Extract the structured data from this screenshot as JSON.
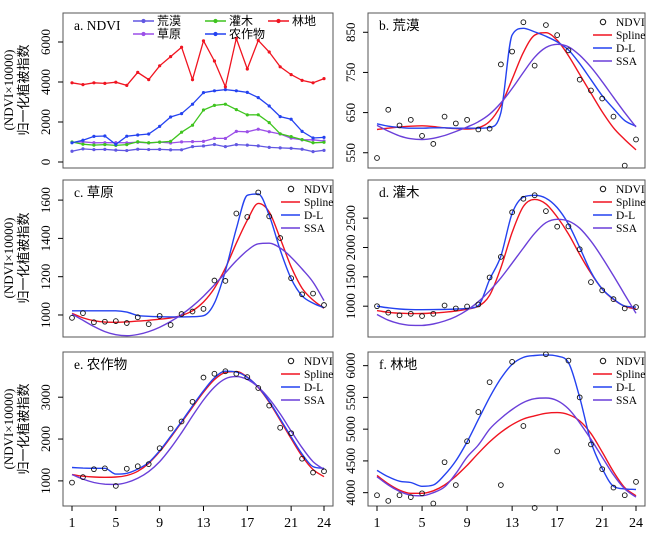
{
  "figure": {
    "y_axis_title_line1": "(NDVI×10000)",
    "y_axis_title_line2": "归一化植被指数",
    "x_ticks": [
      1,
      5,
      9,
      13,
      17,
      21,
      24
    ],
    "x_min": 1,
    "x_max": 24
  },
  "colors": {
    "desert": "#6157e2",
    "grassland": "#9b4fe8",
    "shrub": "#3ec41e",
    "cropland": "#2442f0",
    "forest": "#f01420",
    "points": "#000000",
    "spline": "#f01420",
    "dl": "#2442f0",
    "ssa": "#6a3fd9",
    "frame": "#555555"
  },
  "chart_data": [
    {
      "id": "a",
      "title": "a. NDVI",
      "type": "line",
      "ylim": [
        -300,
        7450
      ],
      "yticks": [
        0,
        2000,
        4000,
        6000
      ],
      "legend_rows": [
        [
          "荒漠",
          "灌木",
          "林地"
        ],
        [
          "草原",
          "农作物"
        ]
      ],
      "series": [
        {
          "name": "荒漠",
          "color_key": "desert",
          "values": [
            537,
            657,
            618,
            632,
            592,
            572,
            640,
            623,
            632,
            608,
            610,
            770,
            802,
            875,
            767,
            868,
            843,
            805,
            732,
            705,
            685,
            640,
            518,
            583
          ]
        },
        {
          "name": "草原",
          "color_key": "grassland",
          "values": [
            985,
            1010,
            962,
            965,
            968,
            958,
            988,
            952,
            995,
            948,
            1005,
            1018,
            1032,
            1180,
            1178,
            1530,
            1512,
            1640,
            1515,
            1402,
            1192,
            1108,
            1112,
            1052
          ]
        },
        {
          "name": "灌木",
          "color_key": "shrub",
          "values": [
            1000,
            890,
            845,
            870,
            832,
            870,
            1012,
            962,
            995,
            1030,
            1490,
            1840,
            2600,
            2830,
            2890,
            2620,
            2355,
            2360,
            1970,
            1410,
            1270,
            1120,
            962,
            985
          ]
        },
        {
          "name": "农作物",
          "color_key": "cropland",
          "values": [
            960,
            1090,
            1280,
            1300,
            880,
            1290,
            1350,
            1400,
            1780,
            2250,
            2420,
            2890,
            3470,
            3560,
            3620,
            3560,
            3480,
            3220,
            2800,
            2270,
            2140,
            1530,
            1200,
            1230
          ]
        },
        {
          "name": "林地",
          "color_key": "forest",
          "values": [
            3960,
            3870,
            3960,
            3930,
            3990,
            3830,
            4480,
            4120,
            4810,
            5270,
            5740,
            4120,
            6060,
            5050,
            3760,
            6180,
            4650,
            6080,
            5500,
            4760,
            4370,
            4080,
            3960,
            4170
          ]
        }
      ]
    },
    {
      "id": "b",
      "title": "b. 荒漠",
      "type": "scatter+fits",
      "ylim": [
        512,
        898
      ],
      "yticks": [
        550,
        650,
        750,
        850
      ],
      "points": [
        537,
        657,
        618,
        632,
        592,
        572,
        640,
        623,
        632,
        608,
        610,
        770,
        802,
        875,
        767,
        868,
        843,
        805,
        732,
        705,
        685,
        640,
        518,
        583
      ],
      "fits": [
        {
          "name": "Spline",
          "color_key": "spline",
          "values": [
            608,
            611,
            614,
            616,
            617,
            615,
            612,
            610,
            609,
            612,
            628,
            668,
            733,
            800,
            843,
            849,
            830,
            792,
            745,
            698,
            652,
            612,
            583,
            557
          ]
        },
        {
          "name": "D-L",
          "color_key": "dl",
          "values": [
            622,
            616,
            613,
            611,
            611,
            612,
            612,
            611,
            611,
            611,
            613,
            650,
            843,
            860,
            851,
            840,
            826,
            806,
            772,
            732,
            692,
            660,
            630,
            616
          ]
        },
        {
          "name": "SSA",
          "color_key": "ssa",
          "values": [
            618,
            604,
            592,
            585,
            583,
            586,
            593,
            603,
            614,
            627,
            646,
            674,
            710,
            750,
            788,
            812,
            820,
            814,
            793,
            763,
            727,
            688,
            650,
            614
          ]
        }
      ],
      "legend": [
        "NDVI",
        "Spline",
        "D-L",
        "SSA"
      ]
    },
    {
      "id": "c",
      "title": "c. 草原",
      "type": "scatter+fits",
      "ylim": [
        885,
        1705
      ],
      "yticks": [
        1000,
        1200,
        1400,
        1600
      ],
      "points": [
        985,
        1010,
        962,
        965,
        968,
        958,
        988,
        952,
        995,
        948,
        1005,
        1018,
        1032,
        1180,
        1178,
        1530,
        1512,
        1640,
        1515,
        1402,
        1192,
        1108,
        1112,
        1052
      ],
      "fits": [
        {
          "name": "Spline",
          "color_key": "spline",
          "values": [
            1008,
            985,
            970,
            963,
            962,
            964,
            968,
            972,
            978,
            985,
            998,
            1022,
            1068,
            1140,
            1245,
            1375,
            1495,
            1583,
            1538,
            1400,
            1252,
            1140,
            1078,
            1035
          ]
        },
        {
          "name": "D-L",
          "color_key": "dl",
          "values": [
            1022,
            1022,
            1022,
            1022,
            1022,
            1015,
            998,
            993,
            991,
            990,
            990,
            991,
            996,
            1062,
            1230,
            1450,
            1625,
            1632,
            1520,
            1340,
            1190,
            1100,
            1062,
            1038
          ]
        },
        {
          "name": "SSA",
          "color_key": "ssa",
          "values": [
            1005,
            972,
            940,
            913,
            897,
            892,
            898,
            913,
            936,
            966,
            1002,
            1046,
            1098,
            1157,
            1220,
            1283,
            1337,
            1372,
            1375,
            1350,
            1302,
            1240,
            1172,
            1075
          ]
        }
      ],
      "legend": [
        "NDVI",
        "Spline",
        "D-L",
        "SSA"
      ]
    },
    {
      "id": "d",
      "title": "d. 灌木",
      "type": "scatter+fits",
      "ylim": [
        475,
        3150
      ],
      "yticks": [
        1000,
        1500,
        2000,
        2500
      ],
      "points": [
        1000,
        890,
        845,
        870,
        832,
        870,
        1012,
        962,
        995,
        1030,
        1490,
        1840,
        2600,
        2830,
        2890,
        2620,
        2355,
        2360,
        1970,
        1410,
        1270,
        1120,
        962,
        985
      ],
      "fits": [
        {
          "name": "Spline",
          "color_key": "spline",
          "values": [
            925,
            895,
            880,
            874,
            876,
            884,
            898,
            918,
            948,
            1000,
            1185,
            1655,
            2255,
            2700,
            2820,
            2742,
            2520,
            2232,
            1882,
            1560,
            1292,
            1115,
            1000,
            950
          ]
        },
        {
          "name": "D-L",
          "color_key": "dl",
          "values": [
            1000,
            972,
            952,
            942,
            940,
            942,
            946,
            952,
            962,
            1012,
            1455,
            1855,
            2580,
            2858,
            2890,
            2840,
            2680,
            2400,
            2002,
            1582,
            1292,
            1122,
            1002,
            985
          ]
        },
        {
          "name": "SSA",
          "color_key": "ssa",
          "values": [
            858,
            762,
            702,
            674,
            672,
            697,
            748,
            822,
            932,
            1076,
            1262,
            1482,
            1732,
            1992,
            2242,
            2422,
            2480,
            2452,
            2328,
            2108,
            1828,
            1518,
            1198,
            878
          ]
        }
      ],
      "legend": [
        "NDVI",
        "Spline",
        "D-L",
        "SSA"
      ]
    },
    {
      "id": "e",
      "title": "e. 农作物",
      "type": "scatter+fits",
      "ylim": [
        400,
        4080
      ],
      "yticks": [
        1000,
        2000,
        3000
      ],
      "points": [
        960,
        1090,
        1280,
        1300,
        880,
        1290,
        1350,
        1400,
        1780,
        2250,
        2420,
        2890,
        3470,
        3560,
        3620,
        3560,
        3480,
        3220,
        2800,
        2270,
        2140,
        1530,
        1200,
        1230
      ],
      "fits": [
        {
          "name": "Spline",
          "color_key": "spline",
          "values": [
            1150,
            1112,
            1092,
            1086,
            1092,
            1130,
            1230,
            1420,
            1700,
            2040,
            2400,
            2760,
            3120,
            3420,
            3592,
            3612,
            3480,
            3232,
            2880,
            2450,
            2012,
            1592,
            1272,
            1100
          ]
        },
        {
          "name": "D-L",
          "color_key": "dl",
          "values": [
            1320,
            1306,
            1300,
            1300,
            1162,
            1182,
            1282,
            1440,
            1722,
            2062,
            2420,
            2792,
            3152,
            3462,
            3622,
            3602,
            3472,
            3242,
            2900,
            2482,
            2052,
            1642,
            1342,
            1300
          ]
        },
        {
          "name": "SSA",
          "color_key": "ssa",
          "values": [
            1150,
            1042,
            962,
            922,
            916,
            962,
            1062,
            1222,
            1462,
            1782,
            2152,
            2552,
            2932,
            3242,
            3442,
            3492,
            3422,
            3242,
            2962,
            2602,
            2192,
            1792,
            1462,
            1272
          ]
        }
      ],
      "legend": [
        "NDVI",
        "Spline",
        "D-L",
        "SSA"
      ]
    },
    {
      "id": "f",
      "title": "f. 林地",
      "type": "scatter+fits",
      "ylim": [
        3790,
        6215
      ],
      "yticks": [
        4000,
        4500,
        5000,
        5500,
        6000
      ],
      "points": [
        3960,
        3870,
        3960,
        3930,
        3990,
        3830,
        4480,
        4120,
        4810,
        5270,
        5740,
        4120,
        6060,
        5050,
        3760,
        6180,
        4650,
        6080,
        5500,
        4760,
        4370,
        4080,
        3960,
        4170
      ],
      "fits": [
        {
          "name": "Spline",
          "color_key": "spline",
          "values": [
            4270,
            4140,
            4040,
            3990,
            3990,
            4030,
            4120,
            4260,
            4430,
            4620,
            4800,
            4950,
            5070,
            5160,
            5210,
            5250,
            5260,
            5230,
            5130,
            4930,
            4640,
            4330,
            4080,
            3950
          ]
        },
        {
          "name": "D-L",
          "color_key": "dl",
          "values": [
            4350,
            4250,
            4180,
            4160,
            4100,
            4120,
            4280,
            4500,
            4800,
            5150,
            5500,
            5800,
            6020,
            6130,
            6160,
            6170,
            6150,
            6050,
            5500,
            4800,
            4380,
            4100,
            4060,
            4050
          ]
        },
        {
          "name": "SSA",
          "color_key": "ssa",
          "values": [
            4250,
            4120,
            4020,
            3960,
            3950,
            4000,
            4090,
            4300,
            4560,
            4750,
            5000,
            5170,
            5310,
            5420,
            5480,
            5490,
            5450,
            5320,
            5100,
            4840,
            4560,
            4280,
            4060,
            3930
          ]
        }
      ],
      "legend": [
        "NDVI",
        "Spline",
        "D-L",
        "SSA"
      ]
    }
  ]
}
